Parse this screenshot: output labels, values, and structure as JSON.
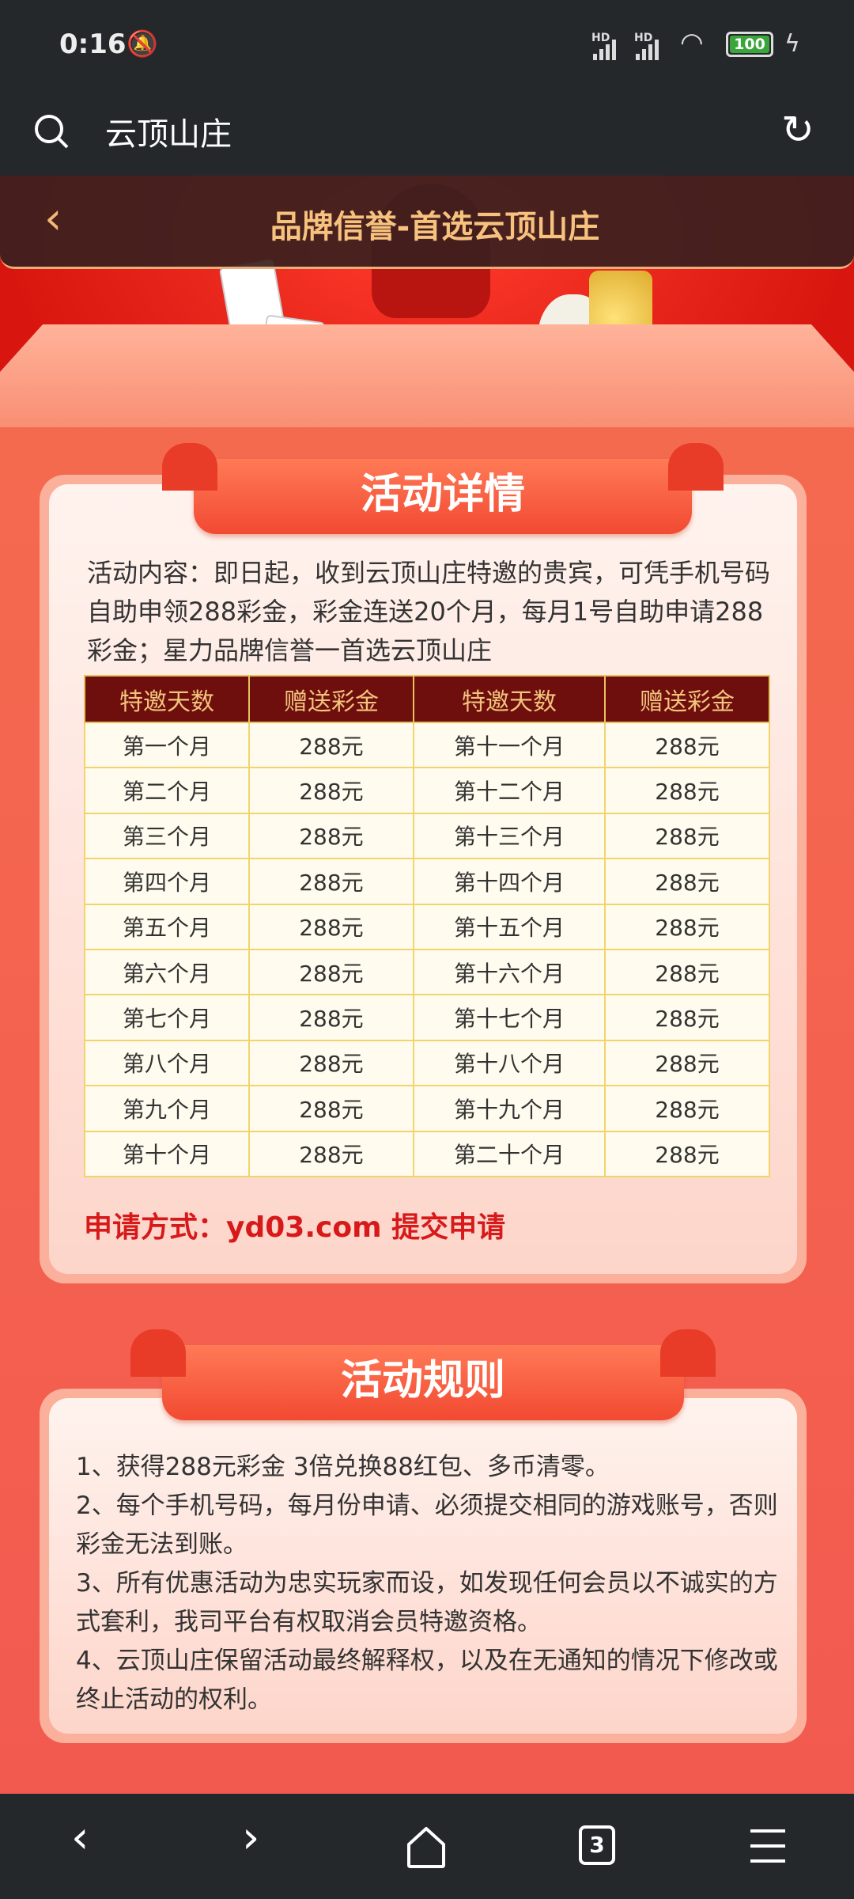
{
  "status_bar": {
    "time": "0:16",
    "battery": "100",
    "network_label": "HD",
    "icons": [
      "bell-off-icon",
      "signal-icon",
      "wifi-icon",
      "battery-icon",
      "charging-icon"
    ]
  },
  "browser": {
    "address_text": "云顶山庄",
    "icons": [
      "search-icon",
      "refresh-icon"
    ]
  },
  "page_header": {
    "title": "品牌信誉-首选云顶山庄",
    "back_icon": "chevron-left-icon"
  },
  "details": {
    "heading": "活动详情",
    "description": "活动内容：即日起，收到云顶山庄特邀的贵宾，可凭手机号码自助申领288彩金，彩金连送20个月，每月1号自助申请288彩金；星力品牌信誉一首选云顶山庄",
    "table": {
      "headers": [
        "特邀天数",
        "赠送彩金",
        "特邀天数",
        "赠送彩金"
      ],
      "rows": [
        [
          "第一个月",
          "288元",
          "第十一个月",
          "288元"
        ],
        [
          "第二个月",
          "288元",
          "第十二个月",
          "288元"
        ],
        [
          "第三个月",
          "288元",
          "第十三个月",
          "288元"
        ],
        [
          "第四个月",
          "288元",
          "第十四个月",
          "288元"
        ],
        [
          "第五个月",
          "288元",
          "第十五个月",
          "288元"
        ],
        [
          "第六个月",
          "288元",
          "第十六个月",
          "288元"
        ],
        [
          "第七个月",
          "288元",
          "第十七个月",
          "288元"
        ],
        [
          "第八个月",
          "288元",
          "第十八个月",
          "288元"
        ],
        [
          "第九个月",
          "288元",
          "第十九个月",
          "288元"
        ],
        [
          "第十个月",
          "288元",
          "第二十个月",
          "288元"
        ]
      ]
    },
    "apply": "申请方式：yd03.com 提交申请"
  },
  "rules": {
    "heading": "活动规则",
    "items": [
      "1、获得288元彩金  3倍兑换88红包、多币清零。",
      "2、每个手机号码，每月份申请、必须提交相同的游戏账号，否则彩金无法到账。",
      "3、所有优惠活动为忠实玩家而设，如发现任何会员以不诚实的方式套利，我司平台有权取消会员特邀资格。",
      "4、云顶山庄保留活动最终解释权，以及在无通知的情况下修改或终止活动的权利。"
    ]
  },
  "bottom_nav": {
    "tab_count": "3",
    "icons": [
      "back-icon",
      "forward-icon",
      "home-icon",
      "tabs-icon",
      "menu-icon"
    ]
  },
  "colors": {
    "accent": "#f24a32",
    "header_text": "#f7c27e",
    "table_header": "#6e0f0e",
    "apply_text": "#d8191a"
  }
}
